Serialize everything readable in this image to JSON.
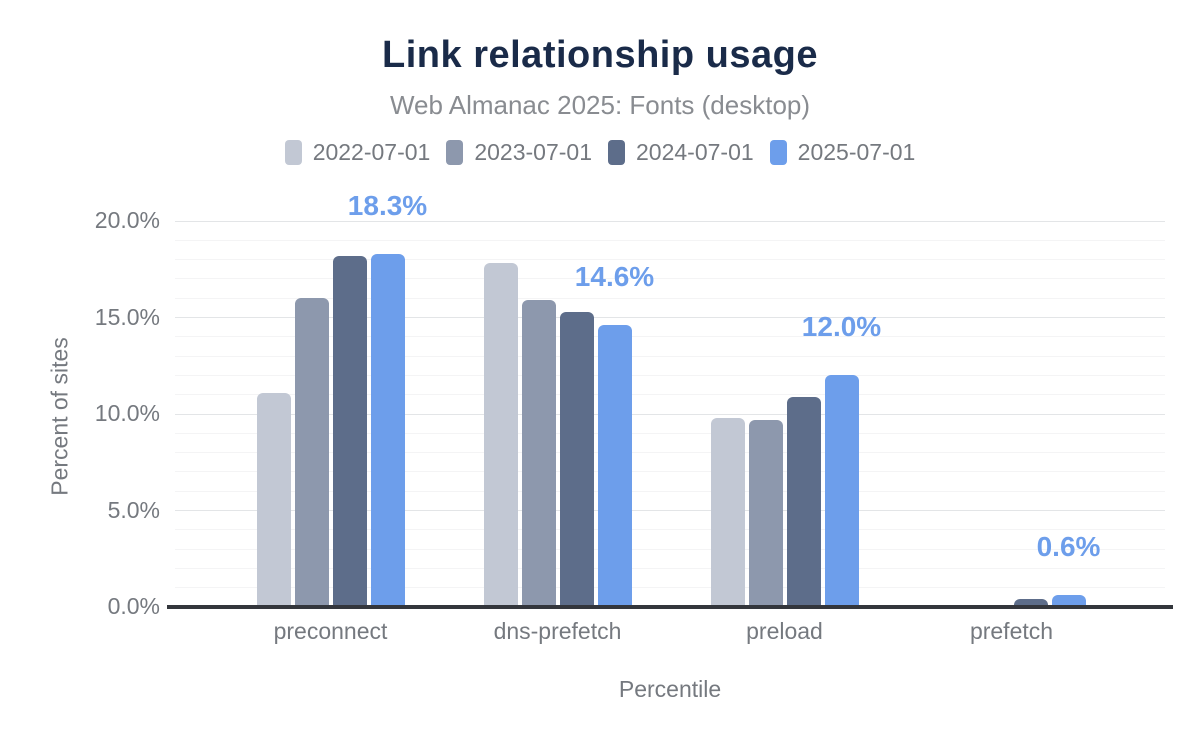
{
  "chart": {
    "title": "Link relationship usage",
    "subtitle": "Web Almanac 2025: Fonts (desktop)"
  },
  "chart_data": {
    "type": "bar",
    "title": "Link relationship usage",
    "subtitle": "Web Almanac 2025: Fonts (desktop)",
    "categories": [
      "preconnect",
      "dns-prefetch",
      "preload",
      "prefetch"
    ],
    "series": [
      {
        "name": "2022-07-01",
        "color": "#c2c8d4",
        "values": [
          11.1,
          17.8,
          9.8,
          0.0
        ]
      },
      {
        "name": "2023-07-01",
        "color": "#8d98ad",
        "values": [
          16.0,
          15.9,
          9.7,
          0.0
        ]
      },
      {
        "name": "2024-07-01",
        "color": "#5d6d8a",
        "values": [
          18.2,
          15.3,
          10.9,
          0.4
        ]
      },
      {
        "name": "2025-07-01",
        "color": "#6d9eeb",
        "values": [
          18.3,
          14.6,
          12.0,
          0.6
        ]
      }
    ],
    "data_labels": [
      "18.3%",
      "14.6%",
      "12.0%",
      "0.6%"
    ],
    "data_label_series": "2025-07-01",
    "xlabel": "Percentile",
    "ylabel": "Percent of sites",
    "y_ticks": [
      {
        "value": 0,
        "label": "0.0%"
      },
      {
        "value": 5,
        "label": "5.0%"
      },
      {
        "value": 10,
        "label": "10.0%"
      },
      {
        "value": 15,
        "label": "15.0%"
      },
      {
        "value": 20,
        "label": "20.0%"
      }
    ],
    "ylim": [
      0,
      20
    ],
    "grid": {
      "minor_step": 1,
      "major_step": 5,
      "orientation": "horizontal"
    },
    "legend_position": "top"
  },
  "colors": {
    "title": "#1a2b49",
    "subtitle": "#898c91",
    "axis_text": "#75797f",
    "data_label": "#6d9eeb",
    "axis_line": "#33363c",
    "grid_minor": "#f4f4f5",
    "grid_major": "#e3e5e7",
    "background": "#ffffff"
  }
}
